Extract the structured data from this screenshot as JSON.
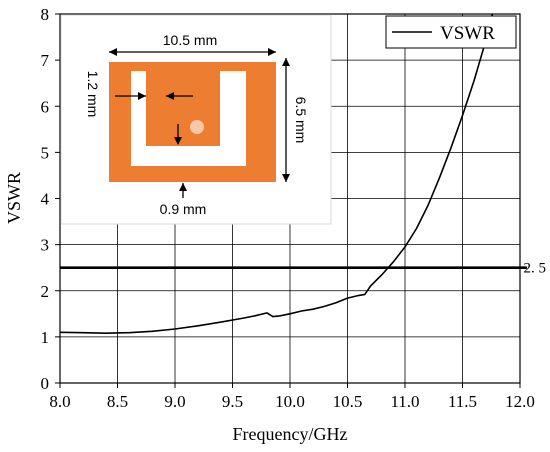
{
  "chart_data": {
    "type": "line",
    "xlabel": "Frequency/GHz",
    "ylabel": "VSWR",
    "xlim": [
      8.0,
      12.0
    ],
    "ylim": [
      0,
      8
    ],
    "xticks": [
      "8.0",
      "8.5",
      "9.0",
      "9.5",
      "10.0",
      "10.5",
      "11.0",
      "11.5",
      "12.0"
    ],
    "yticks": [
      "0",
      "1",
      "2",
      "3",
      "4",
      "5",
      "6",
      "7",
      "8"
    ],
    "grid": true,
    "legend_position": "top-right",
    "series": [
      {
        "name": "VSWR",
        "x": [
          8.0,
          8.2,
          8.4,
          8.6,
          8.8,
          9.0,
          9.2,
          9.4,
          9.6,
          9.7,
          9.8,
          9.85,
          9.9,
          10.0,
          10.1,
          10.2,
          10.3,
          10.4,
          10.5,
          10.6,
          10.65,
          10.7,
          10.8,
          10.9,
          11.0,
          11.1,
          11.2,
          11.3,
          11.4,
          11.5,
          11.6,
          11.7,
          11.76
        ],
        "y": [
          1.1,
          1.09,
          1.08,
          1.09,
          1.12,
          1.17,
          1.24,
          1.32,
          1.41,
          1.46,
          1.52,
          1.44,
          1.45,
          1.5,
          1.56,
          1.6,
          1.66,
          1.74,
          1.84,
          1.9,
          1.92,
          2.1,
          2.35,
          2.63,
          2.95,
          3.35,
          3.85,
          4.45,
          5.1,
          5.8,
          6.55,
          7.4,
          8.0
        ]
      }
    ],
    "reference_line": {
      "y": 2.5,
      "label": "2.5"
    }
  },
  "inset": {
    "width_label": "10.5 mm",
    "height_label": "6.5 mm",
    "slot_width_label": "1.2 mm",
    "gap_label": "0.9 mm",
    "patch_color": "#ED7D31",
    "feed_color": "#F6C8A8"
  }
}
